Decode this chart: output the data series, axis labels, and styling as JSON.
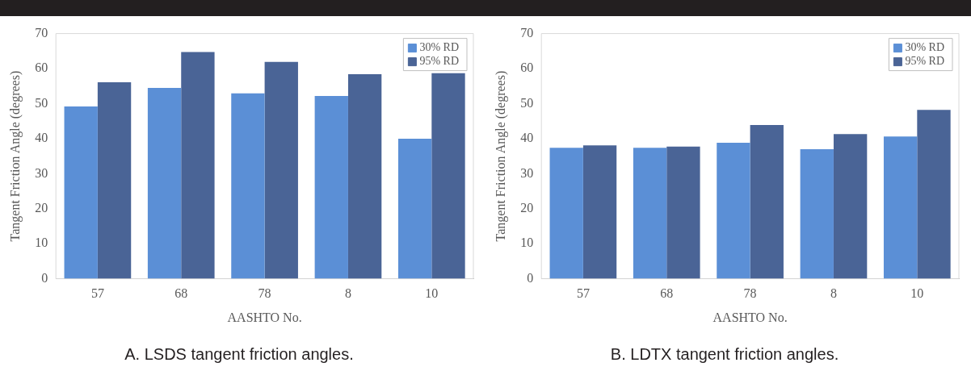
{
  "chart_data": [
    {
      "type": "bar",
      "title": "A. LSDS tangent friction angles.",
      "xlabel": "AASHTO No.",
      "ylabel": "Tangent Friction Angle (degrees)",
      "categories": [
        "57",
        "68",
        "78",
        "8",
        "10"
      ],
      "series": [
        {
          "name": "30% RD",
          "color": "#5b8fd6",
          "values": [
            49.2,
            54.5,
            52.9,
            52.2,
            40.0
          ]
        },
        {
          "name": "95% RD",
          "color": "#4a6496",
          "values": [
            56.1,
            64.7,
            61.9,
            58.4,
            58.7
          ]
        }
      ],
      "ylim": [
        0,
        70
      ],
      "yticks": [
        0,
        10,
        20,
        30,
        40,
        50,
        60,
        70
      ],
      "grid": false,
      "legend": "top right"
    },
    {
      "type": "bar",
      "title": "B. LDTX tangent friction angles.",
      "xlabel": "AASHTO No.",
      "ylabel": "Tangent Friction Angle (degrees)",
      "categories": [
        "57",
        "68",
        "78",
        "8",
        "10"
      ],
      "series": [
        {
          "name": "30% RD",
          "color": "#5b8fd6",
          "values": [
            37.4,
            37.4,
            38.8,
            37.0,
            40.6
          ]
        },
        {
          "name": "95% RD",
          "color": "#4a6496",
          "values": [
            38.1,
            37.7,
            43.9,
            41.3,
            48.2
          ]
        }
      ],
      "ylim": [
        0,
        70
      ],
      "yticks": [
        0,
        10,
        20,
        30,
        40,
        50,
        60,
        70
      ],
      "grid": false,
      "legend": "top right"
    }
  ]
}
